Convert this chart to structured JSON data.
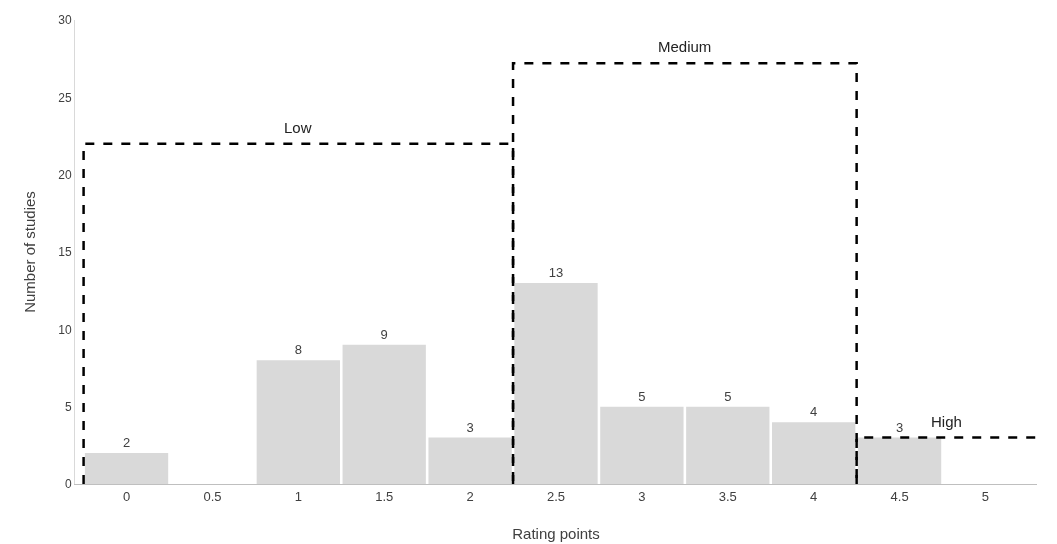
{
  "chart_data": {
    "type": "bar",
    "xlabel": "Rating points",
    "ylabel": "Number of studies",
    "x": [
      0,
      0.5,
      1,
      1.5,
      2,
      2.5,
      3,
      3.5,
      4,
      4.5,
      5
    ],
    "series": [
      {
        "color": "#d9d9d9",
        "values": [
          2,
          0,
          8,
          9,
          3,
          13,
          5,
          5,
          4,
          3,
          0
        ],
        "value_labels": [
          "2",
          null,
          "8",
          "9",
          "3",
          "13",
          "5",
          "5",
          "4",
          "3",
          null
        ]
      },
      {
        "type": "line",
        "name": "Low",
        "color": "#000000",
        "x": [
          -0.25,
          -0.25,
          2.25,
          2.25
        ],
        "values": [
          0,
          22,
          22,
          0
        ]
      },
      {
        "type": "line",
        "name": "Medium",
        "color": "#000000",
        "x": [
          2.25,
          2.25,
          4.25,
          4.25
        ],
        "values": [
          0,
          27.2,
          27.2,
          0
        ]
      },
      {
        "type": "line",
        "name": "High",
        "color": "#000000",
        "x": [
          4.25,
          4.25,
          5.3
        ],
        "values": [
          0,
          3,
          3
        ]
      }
    ],
    "line_style": "dashed",
    "marker": "none",
    "xlim": [
      -0.3,
      5.3
    ],
    "xticks": [
      0,
      0.5,
      1,
      1.5,
      2,
      2.5,
      3,
      3.5,
      4,
      4.5,
      5
    ],
    "ylim": [
      0,
      30
    ],
    "yticks": [
      0,
      5,
      10,
      15,
      20,
      25,
      30
    ],
    "grid": false,
    "legend": false
  }
}
